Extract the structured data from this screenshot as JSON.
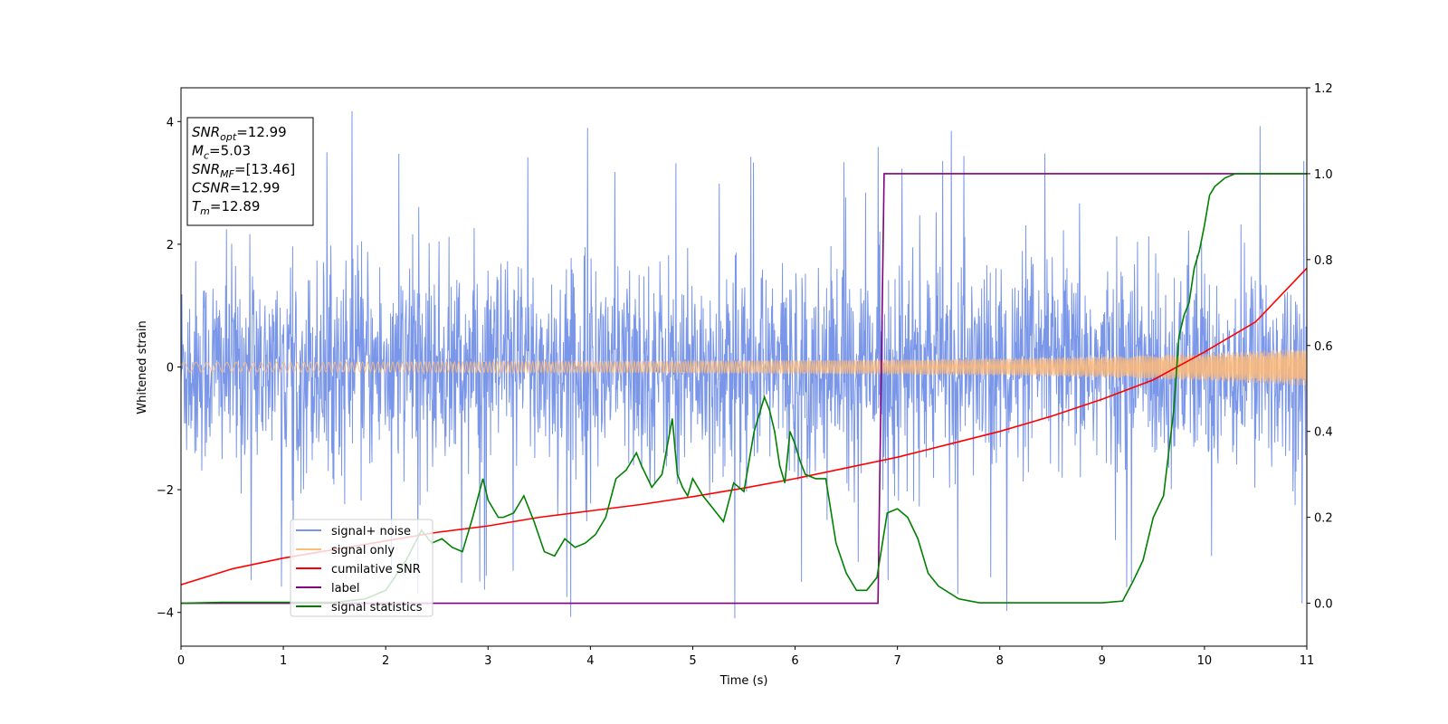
{
  "chart_data": {
    "type": "line",
    "title": "",
    "xlabel": "Time (s)",
    "ylabel": "Whitened strain",
    "xlim": [
      0,
      11
    ],
    "ylim_left": [
      -4.55,
      4.55
    ],
    "ylim_right": [
      -0.1,
      1.2
    ],
    "xticks": [
      "0",
      "1",
      "2",
      "3",
      "4",
      "5",
      "6",
      "7",
      "8",
      "9",
      "10",
      "11"
    ],
    "yticks_left": [
      "−4",
      "−2",
      "0",
      "2",
      "4"
    ],
    "yticks_right": [
      "0.0",
      "0.2",
      "0.4",
      "0.6",
      "0.8",
      "1.0",
      "1.2"
    ],
    "grid": false,
    "legend_position": "lower-left",
    "info_box": {
      "lines": [
        {
          "symbol": "SNR",
          "sub": "opt",
          "value": "=12.99"
        },
        {
          "symbol": "M",
          "sub": "c",
          "value": "=5.03"
        },
        {
          "symbol": "SNR",
          "sub": "MF",
          "value": "=[13.46]"
        },
        {
          "symbol": "CSNR",
          "sub": "",
          "value": "=12.99"
        },
        {
          "symbol": "T",
          "sub": "m",
          "value": "=12.89"
        }
      ]
    },
    "series": [
      {
        "name": "signal+ noise",
        "axis": "left",
        "color": "#7a96e8",
        "style": "noise-band",
        "envelope": {
          "x": [
            0,
            11
          ],
          "typical_low": -2.0,
          "typical_high": 2.1,
          "extreme_low": -4.1,
          "extreme_high": 4.2
        }
      },
      {
        "name": "signal only",
        "axis": "left",
        "color": "#ffbb78",
        "style": "chirp",
        "amplitude": {
          "x": [
            0,
            1,
            2,
            3,
            4,
            5,
            6,
            7,
            8,
            9,
            10,
            11
          ],
          "y": [
            0.08,
            0.08,
            0.08,
            0.09,
            0.09,
            0.1,
            0.11,
            0.12,
            0.14,
            0.17,
            0.22,
            0.3
          ]
        }
      },
      {
        "name": "cumilative SNR",
        "axis": "right",
        "color": "#ff0000",
        "x": [
          0,
          0.5,
          1,
          1.5,
          2,
          2.5,
          3,
          3.5,
          4,
          4.5,
          5,
          5.5,
          6,
          6.5,
          7,
          7.5,
          8,
          8.5,
          9,
          9.5,
          10,
          10.5,
          11
        ],
        "y": [
          0.043,
          0.08,
          0.105,
          0.125,
          0.145,
          0.165,
          0.18,
          0.2,
          0.215,
          0.23,
          0.248,
          0.268,
          0.29,
          0.315,
          0.34,
          0.37,
          0.4,
          0.435,
          0.475,
          0.52,
          0.585,
          0.655,
          0.78
        ]
      },
      {
        "name": "label",
        "axis": "right",
        "color": "#800080",
        "x": [
          0,
          6.81,
          6.87,
          11
        ],
        "y": [
          0,
          0,
          1,
          1
        ]
      },
      {
        "name": "signal statistics",
        "axis": "right",
        "color": "#008000",
        "x": [
          0,
          0.4,
          1.5,
          1.8,
          2.0,
          2.2,
          2.35,
          2.45,
          2.55,
          2.65,
          2.75,
          2.85,
          2.95,
          3.0,
          3.1,
          3.15,
          3.25,
          3.35,
          3.45,
          3.55,
          3.65,
          3.75,
          3.85,
          3.95,
          4.05,
          4.15,
          4.25,
          4.35,
          4.45,
          4.5,
          4.6,
          4.7,
          4.8,
          4.85,
          4.9,
          4.95,
          5.0,
          5.1,
          5.2,
          5.3,
          5.4,
          5.5,
          5.6,
          5.7,
          5.75,
          5.8,
          5.85,
          5.9,
          5.95,
          6.0,
          6.05,
          6.1,
          6.2,
          6.3,
          6.4,
          6.5,
          6.6,
          6.7,
          6.8,
          6.9,
          7.0,
          7.1,
          7.2,
          7.3,
          7.4,
          7.6,
          7.8,
          8.0,
          8.5,
          9.0,
          9.2,
          9.3,
          9.4,
          9.5,
          9.6,
          9.7,
          9.75,
          9.8,
          9.85,
          9.9,
          9.95,
          10.0,
          10.05,
          10.1,
          10.2,
          10.3,
          10.5,
          11.0
        ],
        "y": [
          0.0,
          0.002,
          0.002,
          0.01,
          0.03,
          0.1,
          0.17,
          0.14,
          0.15,
          0.13,
          0.12,
          0.2,
          0.29,
          0.24,
          0.2,
          0.2,
          0.21,
          0.25,
          0.19,
          0.12,
          0.11,
          0.15,
          0.13,
          0.14,
          0.16,
          0.2,
          0.29,
          0.31,
          0.35,
          0.32,
          0.27,
          0.3,
          0.43,
          0.3,
          0.27,
          0.25,
          0.29,
          0.25,
          0.22,
          0.19,
          0.28,
          0.26,
          0.4,
          0.48,
          0.45,
          0.4,
          0.32,
          0.28,
          0.4,
          0.37,
          0.33,
          0.3,
          0.29,
          0.29,
          0.14,
          0.07,
          0.03,
          0.03,
          0.06,
          0.21,
          0.22,
          0.2,
          0.15,
          0.07,
          0.04,
          0.01,
          0.001,
          0.001,
          0.001,
          0.001,
          0.005,
          0.05,
          0.1,
          0.2,
          0.25,
          0.45,
          0.62,
          0.67,
          0.7,
          0.78,
          0.82,
          0.88,
          0.95,
          0.97,
          0.99,
          1.0,
          1.0,
          1.0
        ]
      }
    ]
  }
}
